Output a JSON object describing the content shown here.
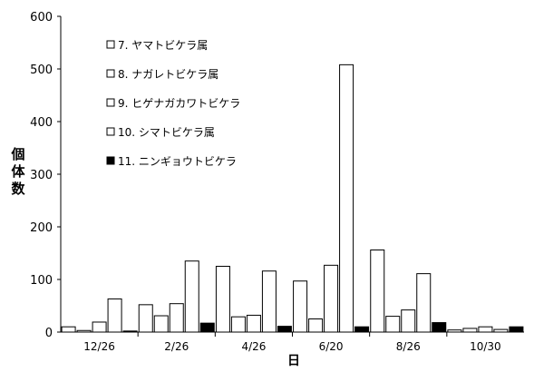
{
  "chart_data": {
    "type": "bar",
    "categories": [
      "12/26",
      "2/26",
      "4/26",
      "6/20",
      "8/26",
      "10/30"
    ],
    "series": [
      {
        "name": "7. ヤマトビケラ属",
        "color": "#ffffff",
        "values": [
          10,
          52,
          125,
          97,
          156,
          4
        ]
      },
      {
        "name": "8. ナガレトビケラ属",
        "color": "#ffffff",
        "values": [
          3,
          31,
          29,
          25,
          30,
          7
        ]
      },
      {
        "name": "9. ヒゲナガカワトビケラ",
        "color": "#ffffff",
        "values": [
          19,
          54,
          32,
          127,
          42,
          10
        ]
      },
      {
        "name": "10. シマトビケラ属",
        "color": "#ffffff",
        "values": [
          63,
          135,
          116,
          508,
          111,
          5
        ]
      },
      {
        "name": "11. ニンギョウトビケラ",
        "color": "#000000",
        "values": [
          2,
          17,
          11,
          10,
          18,
          10
        ]
      }
    ],
    "xlabel": "日",
    "ylabel": "個体数",
    "ylim": [
      0,
      600
    ],
    "yticks": [
      0,
      100,
      200,
      300,
      400,
      500,
      600
    ],
    "grid": false,
    "legend_position": "top-left"
  }
}
